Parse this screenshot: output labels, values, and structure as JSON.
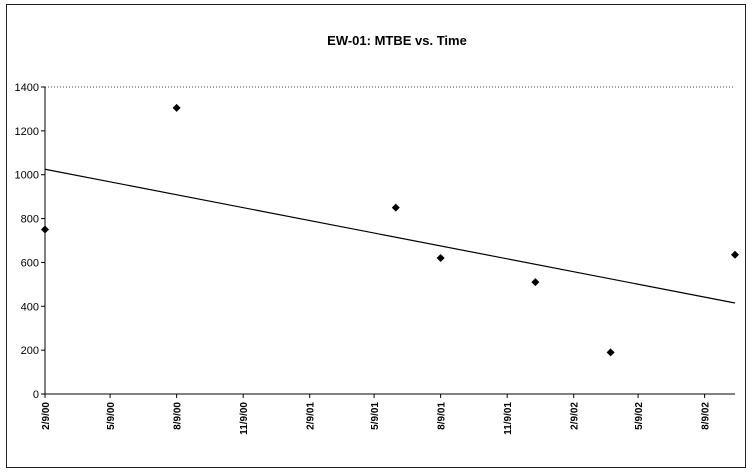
{
  "chart_data": {
    "type": "scatter",
    "title": "EW-01: MTBE vs. Time",
    "xlabel": "",
    "ylabel": "",
    "ylim": [
      0,
      1400
    ],
    "y_ticks": [
      0,
      200,
      400,
      600,
      800,
      1000,
      1200,
      1400
    ],
    "x_tick_labels": [
      "2/9/00",
      "5/9/00",
      "8/9/00",
      "11/9/00",
      "2/9/01",
      "5/9/01",
      "8/9/01",
      "11/9/01",
      "2/9/02",
      "5/9/02",
      "8/9/02"
    ],
    "xlim": [
      "2/9/00",
      "9/20/02"
    ],
    "grid": false,
    "legend": "none",
    "series": [
      {
        "marker": "diamond",
        "points": [
          {
            "x": "2/9/00",
            "y": 750
          },
          {
            "x": "8/9/00",
            "y": 1305
          },
          {
            "x": "6/8/01",
            "y": 850
          },
          {
            "x": "8/9/01",
            "y": 620
          },
          {
            "x": "12/18/01",
            "y": 510
          },
          {
            "x": "4/1/02",
            "y": 190
          },
          {
            "x": "9/20/02",
            "y": 635
          }
        ]
      }
    ],
    "trendline": {
      "type": "linear",
      "start": {
        "x": "2/9/00",
        "y": 1025
      },
      "end": {
        "x": "9/20/02",
        "y": 415
      }
    }
  }
}
